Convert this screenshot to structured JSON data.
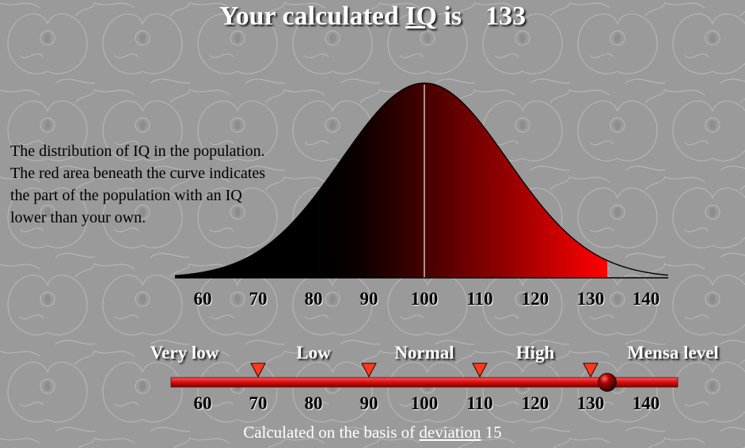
{
  "title": {
    "prefix": "Your calculated",
    "iq_word": "IQ",
    "is_word": "is",
    "score": "133"
  },
  "description": [
    "The distribution of IQ in the population.",
    "The red area beneath the curve indicates",
    "the part of the population with an IQ",
    "lower than your own."
  ],
  "scale": {
    "categories": [
      "Very low",
      "Low",
      "Normal",
      "High",
      "Mensa level"
    ],
    "boundaries": [
      70,
      90,
      110,
      130
    ],
    "your_iq": 133
  },
  "footer": {
    "prefix": "Calculated on the basis of",
    "link": "deviation",
    "value": "15"
  },
  "colors": {
    "background": "#9a9a9a",
    "curve_dark": "#000000",
    "curve_red": "#ff0000",
    "bar_red": "#e01010"
  },
  "chart_data": {
    "type": "area",
    "title": "",
    "xlabel": "",
    "ylabel": "",
    "mean": 100,
    "standard_deviation": 15,
    "shaded_below": 133,
    "mean_line": 100,
    "x_ticks": [
      60,
      70,
      80,
      90,
      100,
      110,
      120,
      130,
      140
    ],
    "xlim": [
      57,
      143
    ]
  }
}
